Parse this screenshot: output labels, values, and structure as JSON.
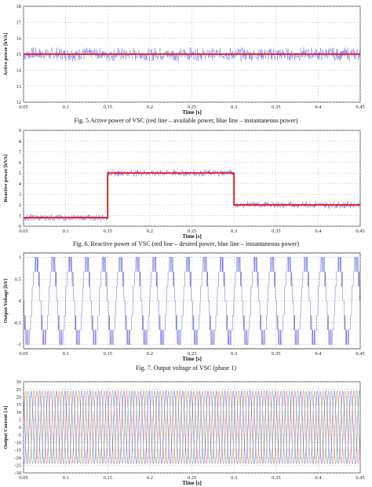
{
  "chart_data": [
    {
      "type": "line",
      "ylabel": "Active power [kVA]",
      "xlabel": "Time [s]",
      "xlim": [
        0.05,
        0.45
      ],
      "ylim": [
        12,
        18
      ],
      "xticks": [
        "0.05",
        "0.1",
        "0.15",
        "0.2",
        "0.25",
        "0.3",
        "0.35",
        "0.4",
        "0.45"
      ],
      "yticks": [
        "12",
        "13",
        "14",
        "15",
        "16",
        "17",
        "18"
      ],
      "grid": true,
      "series": [
        {
          "color": "#ee1111",
          "x": [
            0.05,
            0.45
          ],
          "values": [
            15.0,
            15.0
          ]
        },
        {
          "color": "#7777ee",
          "mean": 15.0,
          "ripple": 0.45
        }
      ],
      "caption": "Fig. 5 Active power of VSC (red line – available power, blue line – instantaneous power)"
    },
    {
      "type": "line",
      "ylabel": "Reactive power [kVA]",
      "xlabel": "Time [s]",
      "xlim": [
        0.05,
        0.45
      ],
      "ylim": [
        0,
        9
      ],
      "xticks": [
        "0.05",
        "0.1",
        "0.15",
        "0.2",
        "0.25",
        "0.3",
        "0.35",
        "0.4",
        "0.45"
      ],
      "yticks": [
        "0",
        "1",
        "2",
        "3",
        "4",
        "5",
        "6",
        "7",
        "8",
        "9"
      ],
      "grid": true,
      "series": [
        {
          "color": "#ee1111",
          "x": [
            0.05,
            0.15,
            0.15,
            0.3,
            0.3,
            0.45
          ],
          "values": [
            0.8,
            0.8,
            5.0,
            5.0,
            2.0,
            2.0
          ]
        },
        {
          "color": "#7777ee",
          "ripple": 0.35
        }
      ],
      "caption": "Fig. 6. Reactive power of VSC (red line – desired power, blue line – instantaneous power)"
    },
    {
      "type": "line",
      "ylabel": "Output Voltage [kV]",
      "xlabel": "Time [s]",
      "xlim": [
        0.05,
        0.45
      ],
      "ylim": [
        -1.1,
        1.1
      ],
      "xticks": [
        "0.05",
        "0.1",
        "0.15",
        "0.2",
        "0.25",
        "0.3",
        "0.35",
        "0.4",
        "0.45"
      ],
      "yticks": [
        "-1",
        "-0.5",
        "0",
        "0.5",
        "1"
      ],
      "grid": true,
      "series": [
        {
          "color": "#5555dd",
          "frequency_hz": 50,
          "levels": [
            -1,
            -0.67,
            -0.33,
            0,
            0.33,
            0.67,
            1
          ]
        }
      ],
      "caption": "Fig. 7. Output voltage of VSC (phase 1)"
    },
    {
      "type": "line",
      "ylabel": "Output Current [A]",
      "xlabel": "Time [s]",
      "xlim": [
        0.05,
        0.45
      ],
      "ylim": [
        -30,
        30
      ],
      "xticks": [
        "0.05",
        "0.1",
        "0.15",
        "0.2",
        "0.25",
        "0.3",
        "0.35",
        "0.4",
        "0.45"
      ],
      "yticks": [
        "-30",
        "-25",
        "-20",
        "-15",
        "-10",
        "-5",
        "0",
        "5",
        "10",
        "15",
        "20",
        "25",
        "30"
      ],
      "grid": true,
      "series": [
        {
          "color": "#ee5555",
          "amplitude": 24,
          "frequency_hz": 100,
          "phase_deg": 0
        },
        {
          "color": "#55aa55",
          "amplitude": 24,
          "frequency_hz": 100,
          "phase_deg": -120
        },
        {
          "color": "#5555ee",
          "amplitude": 24,
          "frequency_hz": 100,
          "phase_deg": 120
        }
      ],
      "caption": ""
    }
  ]
}
